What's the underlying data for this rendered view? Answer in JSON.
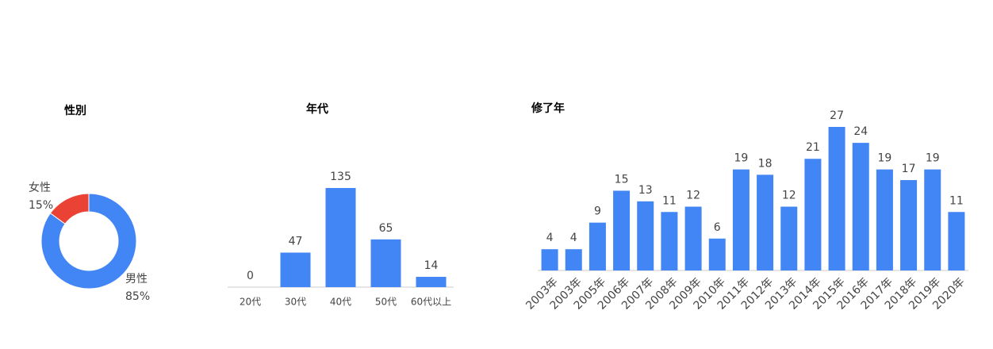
{
  "chart_data": [
    {
      "type": "pie",
      "title": "性別",
      "donut": true,
      "categories": [
        "男性",
        "女性"
      ],
      "values": [
        85,
        15
      ],
      "value_labels": [
        "85%",
        "15%"
      ],
      "colors": [
        "#4285f4",
        "#ea4335"
      ]
    },
    {
      "type": "bar",
      "title": "年代",
      "color": "#4285f4",
      "categories": [
        "20代",
        "30代",
        "40代",
        "50代",
        "60代以上"
      ],
      "values": [
        0,
        47,
        135,
        65,
        14
      ]
    },
    {
      "type": "bar",
      "title": "修了年",
      "color": "#4285f4",
      "categories": [
        "2003年",
        "2003年",
        "2005年",
        "2006年",
        "2007年",
        "2008年",
        "2009年",
        "2010年",
        "2011年",
        "2012年",
        "2013年",
        "2014年",
        "2015年",
        "2016年",
        "2017年",
        "2018年",
        "2019年",
        "2020年"
      ],
      "values": [
        4,
        4,
        9,
        15,
        13,
        11,
        12,
        6,
        19,
        18,
        12,
        21,
        27,
        24,
        19,
        17,
        19,
        11
      ]
    }
  ]
}
